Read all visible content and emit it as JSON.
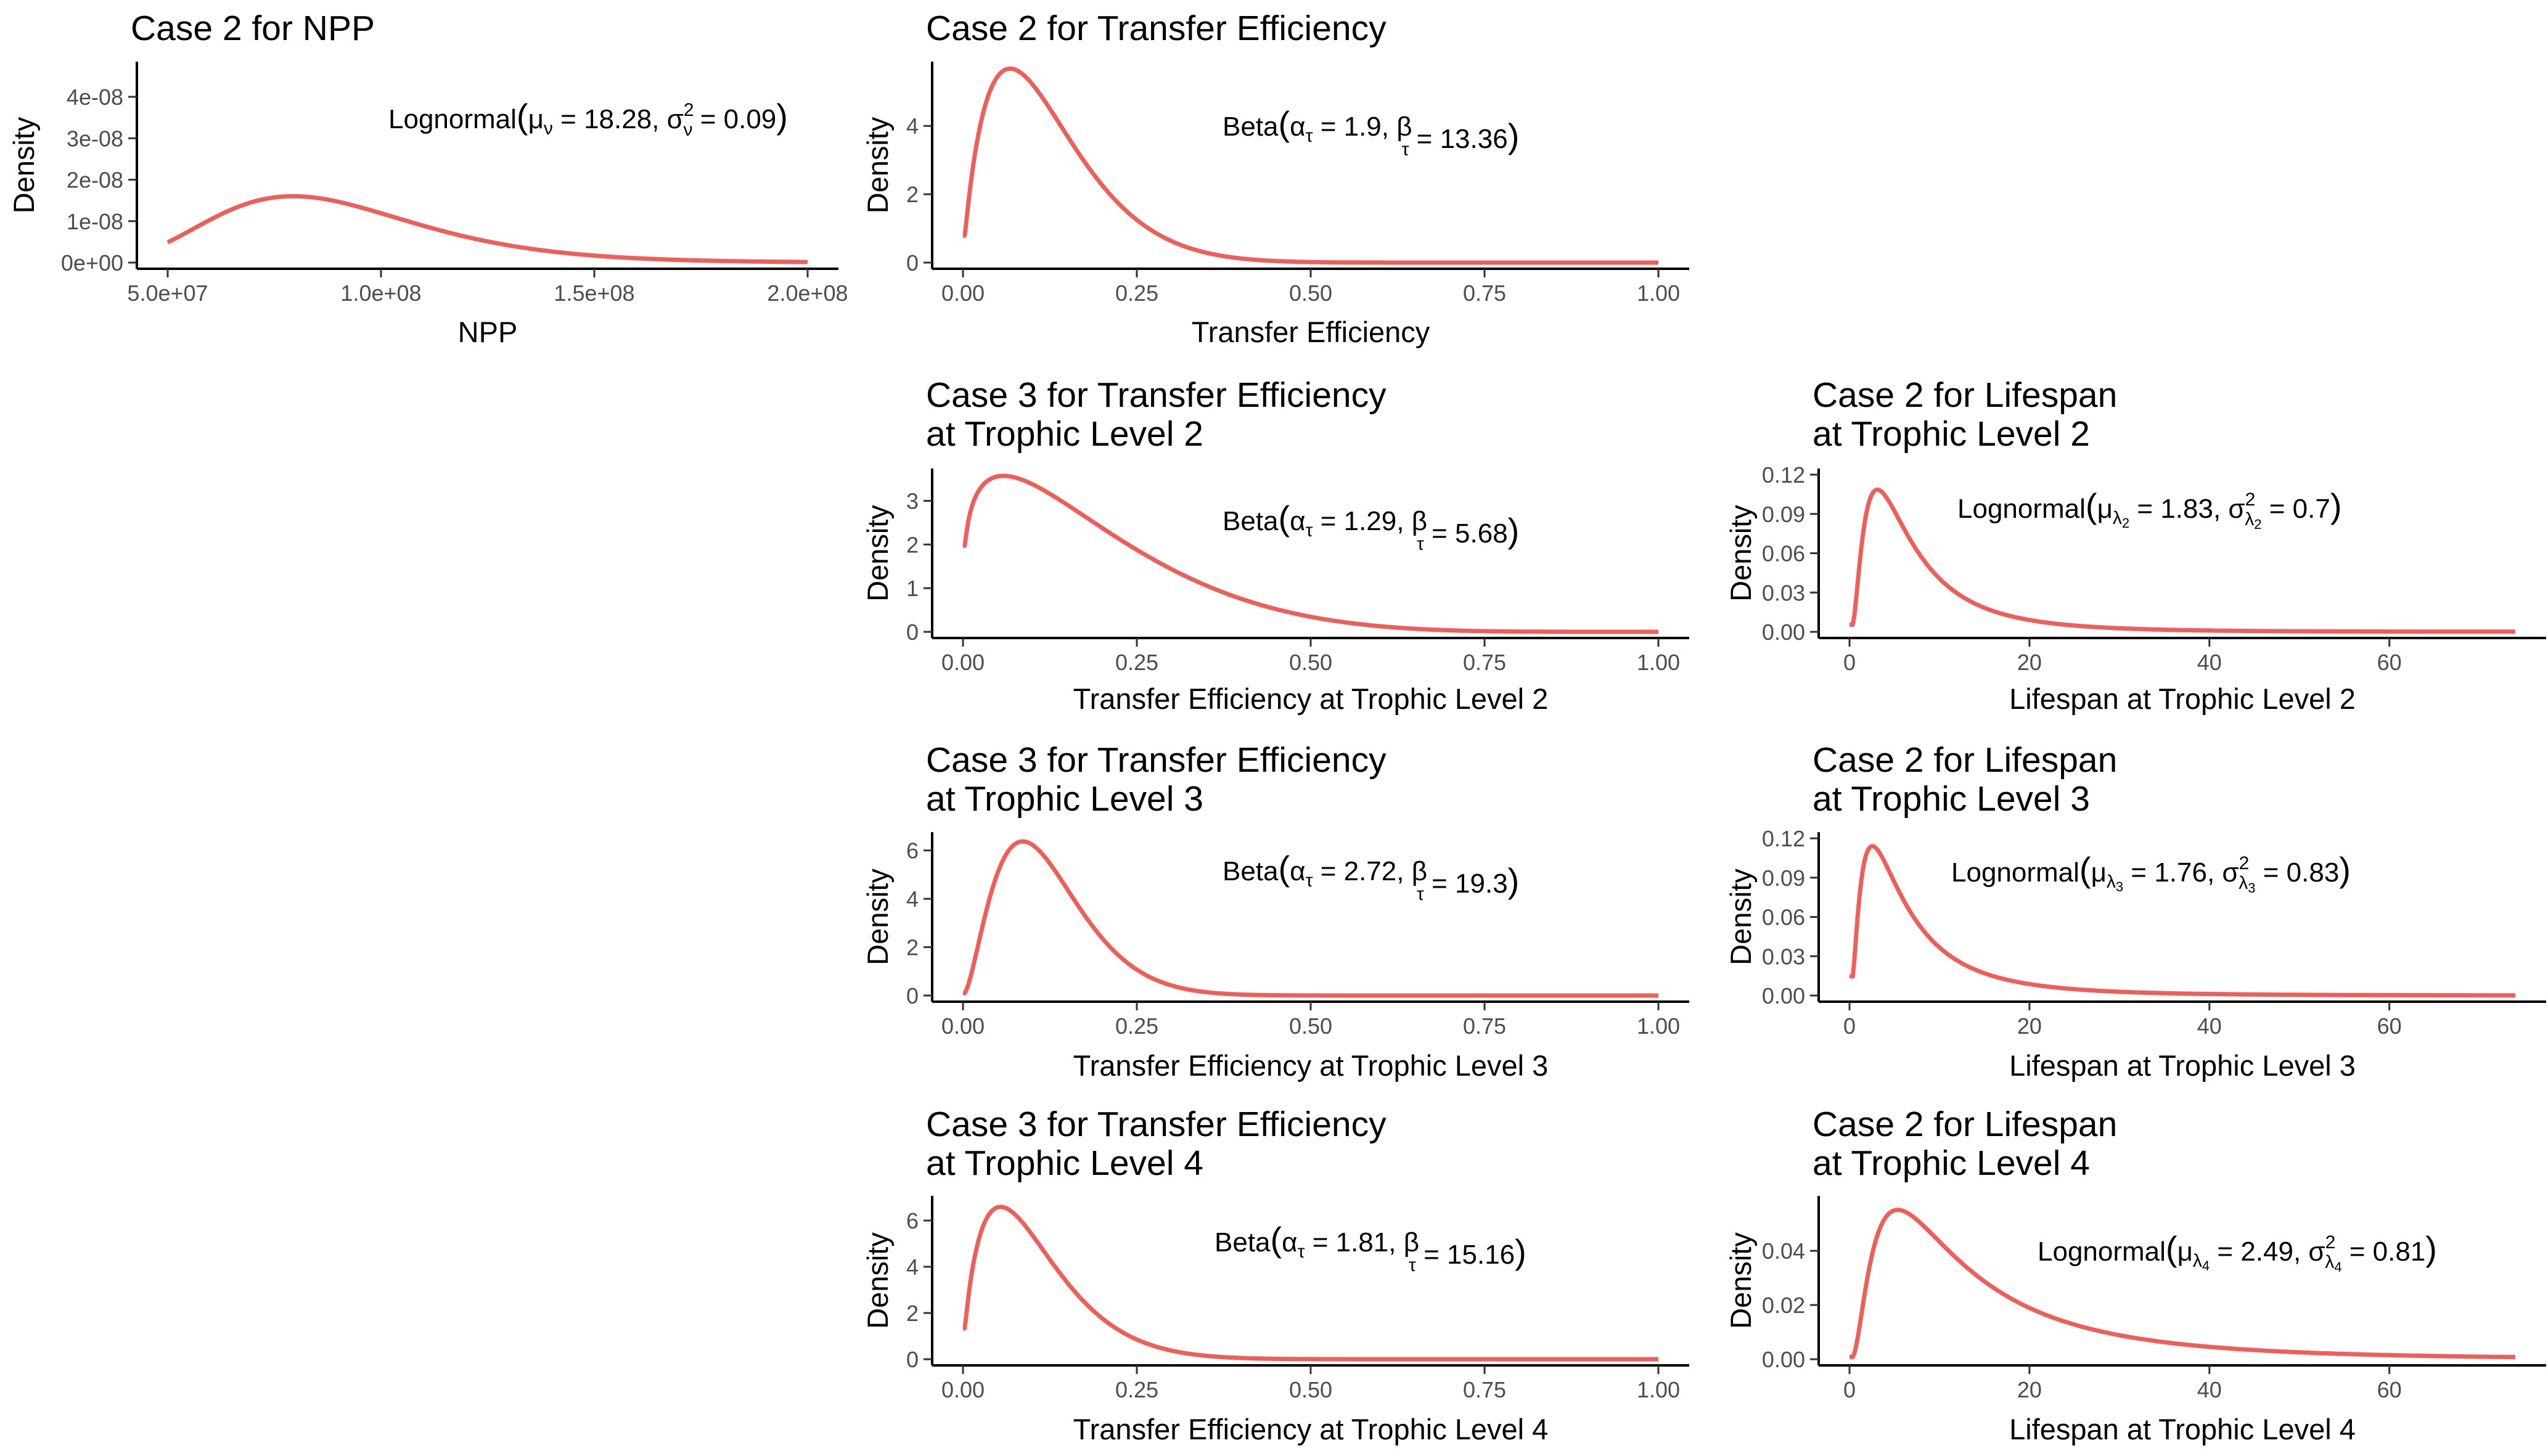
{
  "chart_data": [
    {
      "id": "npp",
      "type": "line",
      "title": [
        "Case 2 for NPP"
      ],
      "xlabel": "NPP",
      "ylabel": "Density",
      "xlim": [
        50000000,
        200000000
      ],
      "ylim": [
        0,
        4.7e-08
      ],
      "xticks": [
        50000000,
        100000000,
        150000000,
        200000000
      ],
      "xtick_labels": [
        "5.0e+07",
        "1.0e+08",
        "1.5e+08",
        "2.0e+08"
      ],
      "yticks": [
        0,
        1e-08,
        2e-08,
        3e-08,
        4e-08
      ],
      "ytick_labels": [
        "0e+00",
        "1e-08",
        "2e-08",
        "3e-08",
        "4e-08"
      ],
      "series": [
        {
          "dist": "lognormal",
          "mu": 18.28,
          "sigma2": 0.09,
          "color": "#ef5f5a"
        }
      ],
      "annotation": {
        "name": "Lognormal",
        "p1": "μ",
        "p1_sub": "ν",
        "p1_value": "= 18.28,",
        "p2": "σ",
        "p2_sup": "2",
        "p2_sub": "ν",
        "p2_value": "= 0.09"
      }
    },
    {
      "id": "te",
      "type": "line",
      "title": [
        "Case 2 for Transfer Efficiency"
      ],
      "xlabel": "Transfer Efficiency",
      "ylabel": "Density",
      "xlim": [
        0,
        1
      ],
      "ylim": [
        0,
        5.7
      ],
      "xticks": [
        0,
        0.25,
        0.5,
        0.75,
        1
      ],
      "xtick_labels": [
        "0.00",
        "0.25",
        "0.50",
        "0.75",
        "1.00"
      ],
      "yticks": [
        0,
        2,
        4
      ],
      "ytick_labels": [
        "0",
        "2",
        "4"
      ],
      "series": [
        {
          "dist": "beta",
          "alpha": 1.9,
          "beta": 13.36,
          "color": "#ef5f5a"
        }
      ],
      "annotation": {
        "name": "Beta",
        "p1": "α",
        "p1_sub": "τ",
        "p1_value": "= 1.9,",
        "p2": "β",
        "p2_sub": "τ",
        "p2_value": "= 13.36"
      }
    },
    {
      "id": "te2",
      "type": "line",
      "title": [
        "Case 3 for Transfer Efficiency",
        "at Trophic Level 2"
      ],
      "xlabel": "Transfer Efficiency at Trophic Level 2",
      "ylabel": "Density",
      "xlim": [
        0,
        1
      ],
      "ylim": [
        0,
        3.6
      ],
      "xticks": [
        0,
        0.25,
        0.5,
        0.75,
        1
      ],
      "xtick_labels": [
        "0.00",
        "0.25",
        "0.50",
        "0.75",
        "1.00"
      ],
      "yticks": [
        0,
        1,
        2,
        3
      ],
      "ytick_labels": [
        "0",
        "1",
        "2",
        "3"
      ],
      "series": [
        {
          "dist": "beta",
          "alpha": 1.29,
          "beta": 5.68,
          "color": "#ef5f5a"
        }
      ],
      "annotation": {
        "name": "Beta",
        "p1": "α",
        "p1_sub": "τ",
        "p1_value": "= 1.29,",
        "p2": "β",
        "p2_sub": "τ",
        "p2_value": "= 5.68"
      }
    },
    {
      "id": "ls2",
      "type": "line",
      "title": [
        "Case 2 for Lifespan",
        "at Trophic Level 2"
      ],
      "xlabel": "Lifespan at Trophic Level 2",
      "ylabel": "Density",
      "xlim": [
        0,
        74
      ],
      "ylim": [
        0,
        0.12
      ],
      "xticks": [
        0,
        20,
        40,
        60
      ],
      "xtick_labels": [
        "0",
        "20",
        "40",
        "60"
      ],
      "yticks": [
        0,
        0.03,
        0.06,
        0.09,
        0.12
      ],
      "ytick_labels": [
        "0.00",
        "0.03",
        "0.06",
        "0.09",
        "0.12"
      ],
      "series": [
        {
          "dist": "lognormal",
          "mu": 1.83,
          "sigma2": 0.7,
          "color": "#ef5f5a"
        }
      ],
      "annotation": {
        "name": "Lognormal",
        "p1": "μ",
        "p1_sub": "λ",
        "p1_subsub": "2",
        "p1_value": "= 1.83,",
        "p2": "σ",
        "p2_sup": "2",
        "p2_sub": "λ",
        "p2_subsub": "2",
        "p2_value": "= 0.7"
      }
    },
    {
      "id": "te3",
      "type": "line",
      "title": [
        "Case 3 for Transfer Efficiency",
        "at Trophic Level 3"
      ],
      "xlabel": "Transfer Efficiency at Trophic Level 3",
      "ylabel": "Density",
      "xlim": [
        0,
        1
      ],
      "ylim": [
        0,
        6.5
      ],
      "xticks": [
        0,
        0.25,
        0.5,
        0.75,
        1
      ],
      "xtick_labels": [
        "0.00",
        "0.25",
        "0.50",
        "0.75",
        "1.00"
      ],
      "yticks": [
        0,
        2,
        4,
        6
      ],
      "ytick_labels": [
        "0",
        "2",
        "4",
        "6"
      ],
      "series": [
        {
          "dist": "beta",
          "alpha": 2.72,
          "beta": 19.3,
          "color": "#ef5f5a"
        }
      ],
      "annotation": {
        "name": "Beta",
        "p1": "α",
        "p1_sub": "τ",
        "p1_value": "= 2.72,",
        "p2": "β",
        "p2_sub": "τ",
        "p2_value": "= 19.3"
      }
    },
    {
      "id": "ls3",
      "type": "line",
      "title": [
        "Case 2 for Lifespan",
        "at Trophic Level 3"
      ],
      "xlabel": "Lifespan at Trophic Level 3",
      "ylabel": "Density",
      "xlim": [
        0,
        74
      ],
      "ylim": [
        0,
        0.12
      ],
      "xticks": [
        0,
        20,
        40,
        60
      ],
      "xtick_labels": [
        "0",
        "20",
        "40",
        "60"
      ],
      "yticks": [
        0,
        0.03,
        0.06,
        0.09,
        0.12
      ],
      "ytick_labels": [
        "0.00",
        "0.03",
        "0.06",
        "0.09",
        "0.12"
      ],
      "series": [
        {
          "dist": "lognormal",
          "mu": 1.76,
          "sigma2": 0.83,
          "color": "#ef5f5a"
        }
      ],
      "annotation": {
        "name": "Lognormal",
        "p1": "μ",
        "p1_sub": "λ",
        "p1_subsub": "3",
        "p1_value": "= 1.76,",
        "p2": "σ",
        "p2_sup": "2",
        "p2_sub": "λ",
        "p2_subsub": "3",
        "p2_value": "= 0.83"
      }
    },
    {
      "id": "te4",
      "type": "line",
      "title": [
        "Case 3 for Transfer Efficiency",
        "at Trophic Level 4"
      ],
      "xlabel": "Transfer Efficiency at Trophic Level 4",
      "ylabel": "Density",
      "xlim": [
        0,
        1
      ],
      "ylim": [
        0,
        6.8
      ],
      "xticks": [
        0,
        0.25,
        0.5,
        0.75,
        1
      ],
      "xtick_labels": [
        "0.00",
        "0.25",
        "0.50",
        "0.75",
        "1.00"
      ],
      "yticks": [
        0,
        2,
        4,
        6
      ],
      "ytick_labels": [
        "0",
        "2",
        "4",
        "6"
      ],
      "series": [
        {
          "dist": "beta",
          "alpha": 1.81,
          "beta": 15.16,
          "color": "#ef5f5a"
        }
      ],
      "annotation": {
        "name": "Beta",
        "p1": "α",
        "p1_sub": "τ",
        "p1_value": "= 1.81,",
        "p2": "β",
        "p2_sub": "τ",
        "p2_value": "= 15.16"
      }
    },
    {
      "id": "ls4",
      "type": "line",
      "title": [
        "Case 2 for Lifespan",
        "at Trophic Level 4"
      ],
      "xlabel": "Lifespan at Trophic Level 4",
      "ylabel": "Density",
      "xlim": [
        0,
        74
      ],
      "ylim": [
        0,
        0.058
      ],
      "xticks": [
        0,
        20,
        40,
        60
      ],
      "xtick_labels": [
        "0",
        "20",
        "40",
        "60"
      ],
      "yticks": [
        0,
        0.02,
        0.04
      ],
      "ytick_labels": [
        "0.00",
        "0.02",
        "0.04"
      ],
      "series": [
        {
          "dist": "lognormal",
          "mu": 2.49,
          "sigma2": 0.81,
          "color": "#ef5f5a"
        }
      ],
      "annotation": {
        "name": "Lognormal",
        "p1": "μ",
        "p1_sub": "λ",
        "p1_subsub": "4",
        "p1_value": "= 2.49,",
        "p2": "σ",
        "p2_sup": "2",
        "p2_sub": "λ",
        "p2_subsub": "4",
        "p2_value": "= 0.81"
      }
    }
  ]
}
